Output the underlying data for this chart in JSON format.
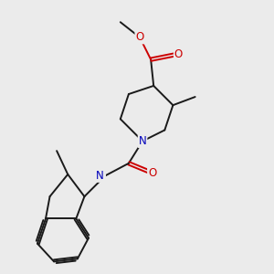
{
  "background_color": "#ebebeb",
  "bond_color": "#1a1a1a",
  "atom_colors": {
    "O": "#cc0000",
    "N": "#0000bb",
    "H_label": "#336666"
  },
  "figsize": [
    3.0,
    3.0
  ],
  "dpi": 100,
  "bond_lw": 1.4,
  "font_size": 7.5
}
